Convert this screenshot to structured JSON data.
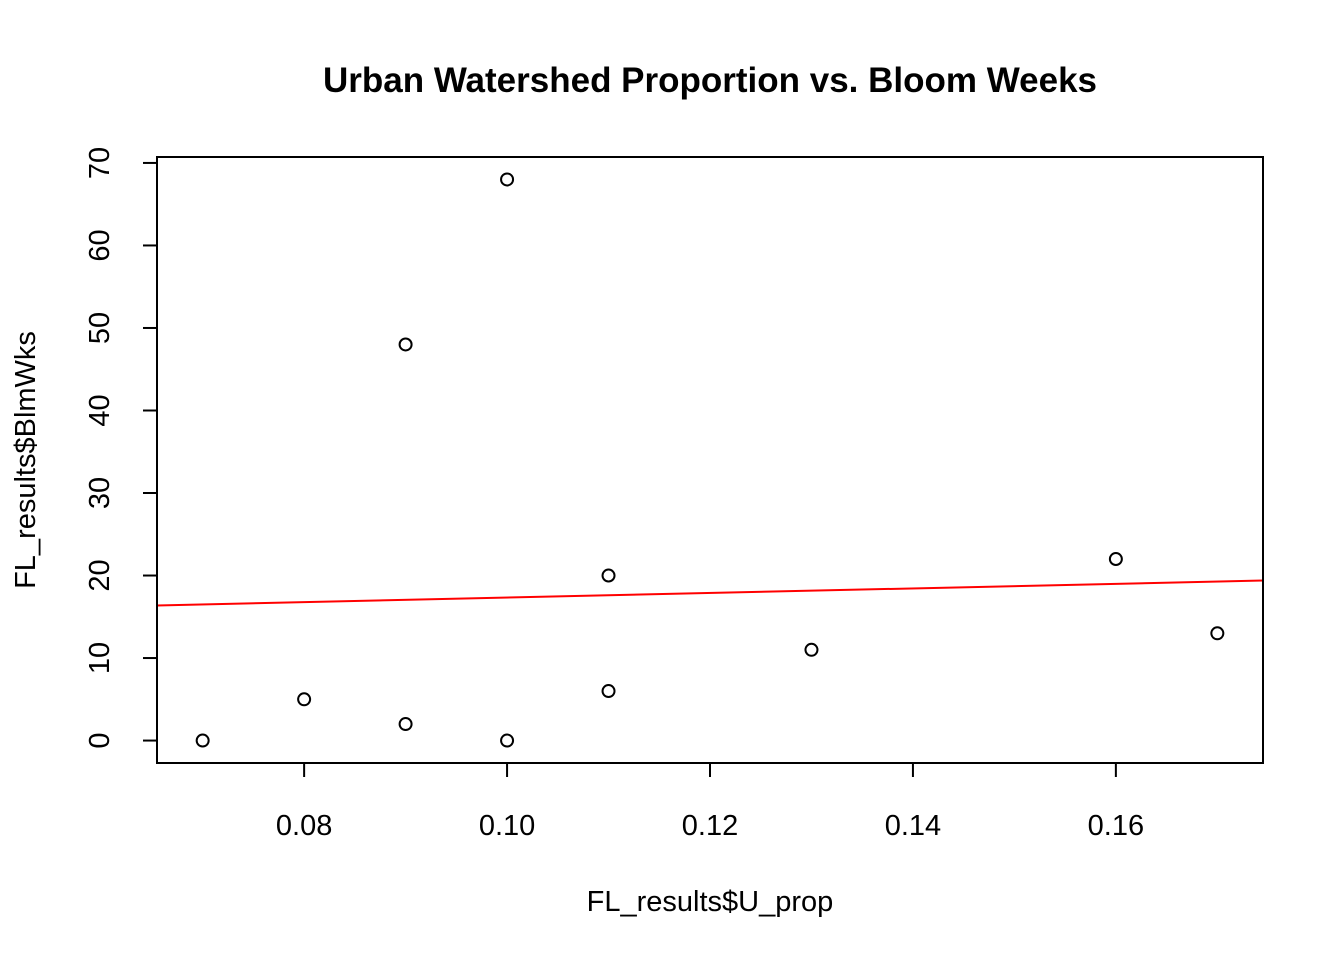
{
  "chart_data": {
    "type": "scatter",
    "title": "Urban Watershed Proportion vs. Bloom Weeks",
    "xlabel": "FL_results$U_prop",
    "ylabel": "FL_results$BlmWks",
    "xlim": [
      0.0655,
      0.1745
    ],
    "ylim": [
      -2.72,
      70.72
    ],
    "x_ticks": [
      0.08,
      0.1,
      0.12,
      0.14,
      0.16
    ],
    "x_tick_labels": [
      "0.08",
      "0.10",
      "0.12",
      "0.14",
      "0.16"
    ],
    "y_ticks": [
      0,
      10,
      20,
      30,
      40,
      50,
      60,
      70
    ],
    "y_tick_labels": [
      "0",
      "10",
      "20",
      "30",
      "40",
      "50",
      "60",
      "70"
    ],
    "points": [
      {
        "x": 0.07,
        "y": 0
      },
      {
        "x": 0.08,
        "y": 5
      },
      {
        "x": 0.09,
        "y": 2
      },
      {
        "x": 0.09,
        "y": 48
      },
      {
        "x": 0.1,
        "y": 68
      },
      {
        "x": 0.1,
        "y": 0
      },
      {
        "x": 0.11,
        "y": 20
      },
      {
        "x": 0.11,
        "y": 6
      },
      {
        "x": 0.13,
        "y": 11
      },
      {
        "x": 0.16,
        "y": 22
      },
      {
        "x": 0.17,
        "y": 13
      }
    ],
    "regression_line": {
      "color": "#ff0000",
      "intercept": 14.56,
      "slope": 27.7
    },
    "point_style": "open-circle",
    "grid": false,
    "legend": "none"
  }
}
